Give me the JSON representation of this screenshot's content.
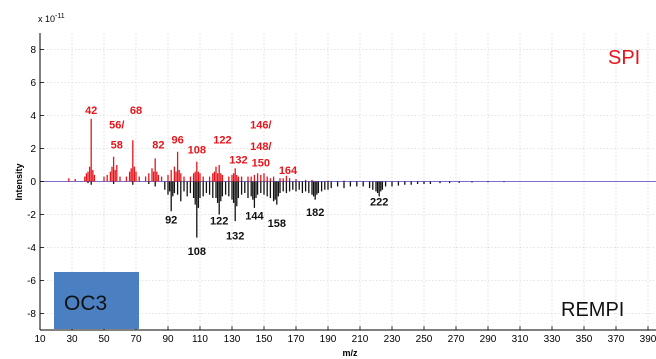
{
  "chart_data": {
    "type": "bar",
    "xlabel": "m/z",
    "ylabel": "Intensity",
    "exponent_label": "x 10",
    "exponent_power": "-11",
    "xlim": [
      10,
      395
    ],
    "ylim": [
      -9,
      9
    ],
    "x_ticks": [
      10,
      30,
      50,
      70,
      90,
      110,
      130,
      150,
      170,
      190,
      210,
      230,
      250,
      270,
      290,
      310,
      330,
      350,
      370,
      390
    ],
    "x_tick_labels": [
      "10",
      "30",
      "50",
      "70",
      "90",
      "110",
      "130",
      "150",
      "170",
      "190",
      "210",
      "230",
      "250",
      "270",
      "290",
      "310",
      "330",
      "350",
      "370",
      "390"
    ],
    "y_ticks": [
      -8,
      -6,
      -4,
      -2,
      0,
      2,
      4,
      6,
      8
    ],
    "y_tick_labels": [
      "-8",
      "-6",
      "-4",
      "-2",
      "0",
      "2",
      "4",
      "6",
      "8"
    ],
    "grid": true,
    "series": [
      {
        "name": "SPI",
        "color": "#e8141b",
        "x": [
          28,
          32,
          38,
          39,
          40,
          41,
          42,
          43,
          44,
          50,
          52,
          54,
          55,
          56,
          57,
          58,
          60,
          64,
          66,
          67,
          68,
          69,
          70,
          72,
          76,
          78,
          80,
          81,
          82,
          83,
          84,
          86,
          90,
          92,
          94,
          95,
          96,
          97,
          98,
          100,
          104,
          106,
          107,
          108,
          109,
          110,
          112,
          116,
          118,
          119,
          120,
          121,
          122,
          123,
          124,
          128,
          130,
          131,
          132,
          133,
          134,
          136,
          140,
          142,
          144,
          146,
          148,
          150,
          152,
          154,
          156,
          160,
          162,
          164,
          166,
          170,
          176,
          180,
          190,
          200
        ],
        "values": [
          0.2,
          0.15,
          0.3,
          0.5,
          0.6,
          0.9,
          3.8,
          0.7,
          0.4,
          0.3,
          0.4,
          0.6,
          0.9,
          1.5,
          0.7,
          1.0,
          0.3,
          0.3,
          0.6,
          0.8,
          2.5,
          0.9,
          0.6,
          0.3,
          0.3,
          0.5,
          0.8,
          0.6,
          1.4,
          0.6,
          0.4,
          0.3,
          0.4,
          0.7,
          0.9,
          0.6,
          1.8,
          0.7,
          0.5,
          0.3,
          0.3,
          0.5,
          0.6,
          1.2,
          0.6,
          0.5,
          0.3,
          0.3,
          0.5,
          0.6,
          0.9,
          0.5,
          1.0,
          0.5,
          0.4,
          0.3,
          0.4,
          0.5,
          0.8,
          0.4,
          0.3,
          0.3,
          0.3,
          0.3,
          0.4,
          0.5,
          0.4,
          0.5,
          0.3,
          0.2,
          0.3,
          0.2,
          0.2,
          0.35,
          0.2,
          0.15,
          0.1,
          0.1,
          0.05,
          0.05
        ]
      },
      {
        "name": "REMPI",
        "color": "#111111",
        "x": [
          40,
          42,
          56,
          68,
          78,
          82,
          88,
          90,
          91,
          92,
          93,
          94,
          96,
          98,
          100,
          102,
          104,
          106,
          107,
          108,
          109,
          110,
          112,
          114,
          116,
          118,
          120,
          121,
          122,
          123,
          124,
          126,
          128,
          130,
          131,
          132,
          133,
          134,
          136,
          138,
          140,
          142,
          143,
          144,
          145,
          146,
          148,
          150,
          152,
          154,
          156,
          157,
          158,
          159,
          160,
          162,
          164,
          166,
          168,
          170,
          172,
          174,
          176,
          178,
          180,
          181,
          182,
          183,
          184,
          186,
          188,
          190,
          192,
          196,
          200,
          204,
          208,
          212,
          216,
          218,
          220,
          221,
          222,
          223,
          224,
          226,
          230,
          234,
          238,
          242,
          246,
          250,
          254,
          260,
          266,
          272,
          280,
          290,
          300
        ],
        "values": [
          -0.1,
          -0.2,
          -0.15,
          -0.2,
          -0.15,
          -0.3,
          -0.5,
          -0.8,
          -0.6,
          -1.8,
          -0.9,
          -0.7,
          -0.8,
          -1.2,
          -0.6,
          -0.9,
          -0.7,
          -1.0,
          -1.4,
          -3.4,
          -1.6,
          -1.0,
          -0.9,
          -0.7,
          -0.8,
          -1.0,
          -1.0,
          -1.3,
          -2.0,
          -1.2,
          -0.9,
          -0.8,
          -0.9,
          -1.1,
          -1.3,
          -2.4,
          -1.5,
          -1.0,
          -0.8,
          -0.7,
          -1.0,
          -0.9,
          -1.1,
          -1.6,
          -1.0,
          -0.8,
          -0.7,
          -0.8,
          -0.9,
          -1.0,
          -1.2,
          -1.1,
          -1.4,
          -0.9,
          -0.7,
          -0.6,
          -0.7,
          -0.6,
          -0.5,
          -0.6,
          -0.5,
          -0.7,
          -0.6,
          -0.7,
          -0.8,
          -0.9,
          -1.1,
          -0.8,
          -0.7,
          -0.6,
          -0.5,
          -0.5,
          -0.4,
          -0.3,
          -0.4,
          -0.3,
          -0.3,
          -0.3,
          -0.4,
          -0.5,
          -0.6,
          -0.7,
          -0.9,
          -0.6,
          -0.5,
          -0.3,
          -0.3,
          -0.25,
          -0.2,
          -0.2,
          -0.15,
          -0.15,
          -0.15,
          -0.1,
          -0.1,
          -0.08,
          -0.06,
          -0.05,
          -0.04
        ]
      }
    ],
    "annotations": {
      "spi": [
        {
          "text": "42",
          "mz": 42,
          "y": 4.1
        },
        {
          "text": "68",
          "mz": 70,
          "y": 4.1
        },
        {
          "text": "56/",
          "mz": 58,
          "y": 3.2
        },
        {
          "text": "58",
          "mz": 58,
          "y": 2.0
        },
        {
          "text": "82",
          "mz": 84,
          "y": 2.0
        },
        {
          "text": "96",
          "mz": 96,
          "y": 2.3
        },
        {
          "text": "108",
          "mz": 108,
          "y": 1.7
        },
        {
          "text": "122",
          "mz": 124,
          "y": 2.3
        },
        {
          "text": "132",
          "mz": 134,
          "y": 1.1
        },
        {
          "text": "146/",
          "mz": 148,
          "y": 3.2
        },
        {
          "text": "148/",
          "mz": 148,
          "y": 1.9
        },
        {
          "text": "150",
          "mz": 148,
          "y": 0.9
        },
        {
          "text": "164",
          "mz": 165,
          "y": 0.45
        }
      ],
      "rempi": [
        {
          "text": "92",
          "mz": 92,
          "y": -2.55
        },
        {
          "text": "108",
          "mz": 108,
          "y": -4.45
        },
        {
          "text": "122",
          "mz": 122,
          "y": -2.6
        },
        {
          "text": "132",
          "mz": 132,
          "y": -3.5
        },
        {
          "text": "144",
          "mz": 144,
          "y": -2.3
        },
        {
          "text": "158",
          "mz": 158,
          "y": -2.75
        },
        {
          "text": "182",
          "mz": 182,
          "y": -2.1
        },
        {
          "text": "222",
          "mz": 222,
          "y": -1.45
        }
      ]
    },
    "corner_labels": {
      "top_right": "SPI",
      "bottom_right": "REMPI",
      "bottom_left_box": "OC3",
      "box_color": "#4a7fc1"
    }
  }
}
